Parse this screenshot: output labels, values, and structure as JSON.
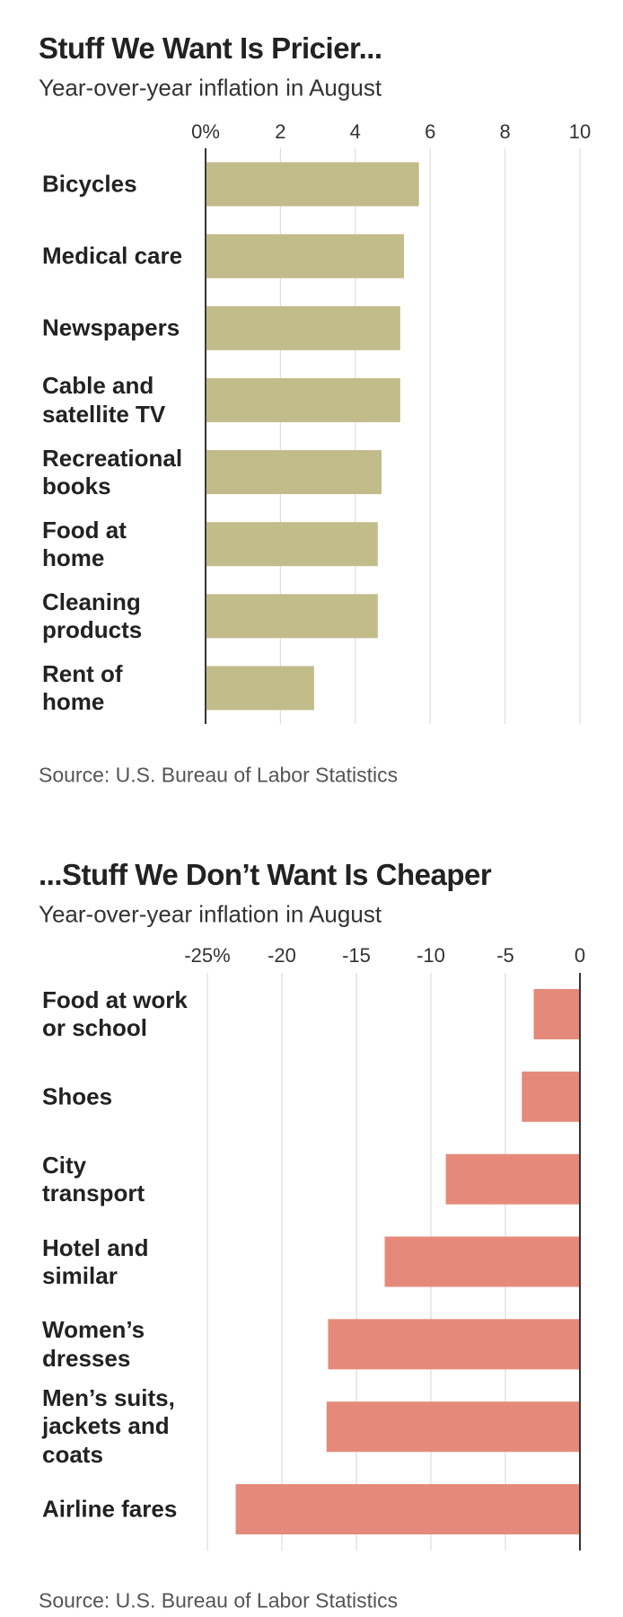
{
  "chart_data": [
    {
      "type": "bar",
      "orientation": "horizontal",
      "title": "Stuff We Want Is Pricier...",
      "subtitle": "Year-over-year inflation in August",
      "categories": [
        "Bicycles",
        "Medical care",
        "Newspapers",
        "Cable and\nsatellite TV",
        "Recreational\nbooks",
        "Food at\nhome",
        "Cleaning\nproducts",
        "Rent of\nhome"
      ],
      "values": [
        5.7,
        5.3,
        5.2,
        5.2,
        4.7,
        4.6,
        4.6,
        2.9
      ],
      "color": "#c2bb8a",
      "xlim": [
        0,
        10
      ],
      "xticks": [
        {
          "value": 0,
          "label": "0%"
        },
        2,
        4,
        6,
        8,
        10
      ],
      "grid": true,
      "source": "Source: U.S. Bureau of Labor Statistics"
    },
    {
      "type": "bar",
      "orientation": "horizontal",
      "title": "...Stuff We Don’t Want Is Cheaper",
      "subtitle": "Year-over-year inflation in August",
      "categories": [
        "Food at work\nor school",
        "Shoes",
        "City\ntransport",
        "Hotel and\nsimilar",
        "Women’s\ndresses",
        "Men’s suits,\njackets and\ncoats",
        "Airline fares"
      ],
      "values": [
        -3.1,
        -3.9,
        -9.0,
        -13.1,
        -16.9,
        -17.0,
        -23.1
      ],
      "color": "#e58a7a",
      "xlim": [
        -25,
        0
      ],
      "xticks": [
        {
          "value": -25,
          "label": "-25%"
        },
        -20,
        -15,
        -10,
        -5,
        0
      ],
      "grid": true,
      "source": "Source: U.S. Bureau of Labor Statistics"
    }
  ]
}
